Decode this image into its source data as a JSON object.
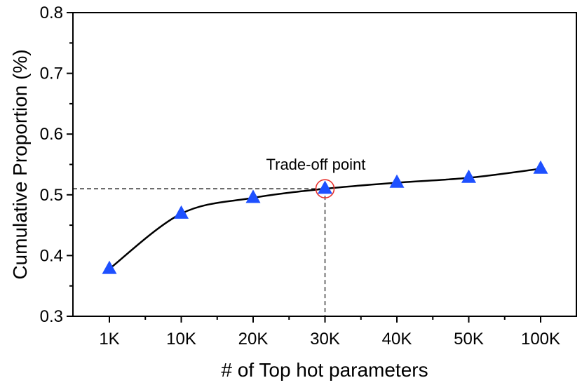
{
  "chart_data": {
    "type": "line",
    "categories": [
      "1K",
      "10K",
      "20K",
      "30K",
      "40K",
      "50K",
      "100K"
    ],
    "series": [
      {
        "values": [
          0.378,
          0.469,
          0.495,
          0.51,
          0.52,
          0.528,
          0.543
        ],
        "color": "#1e50ff",
        "marker": "triangle",
        "line_color": "#000000"
      }
    ],
    "xlabel": "# of Top hot parameters",
    "ylabel": "Cumulative Proportion (%)",
    "ylim": [
      0.3,
      0.8
    ],
    "yticks": [
      "0.3",
      "0.4",
      "0.5",
      "0.6",
      "0.7",
      "0.8"
    ],
    "annotation": {
      "text": "Trade-off point",
      "category": "30K",
      "value": 0.51,
      "circle_color": "#e8332f"
    },
    "grid": false,
    "legend": "none"
  }
}
